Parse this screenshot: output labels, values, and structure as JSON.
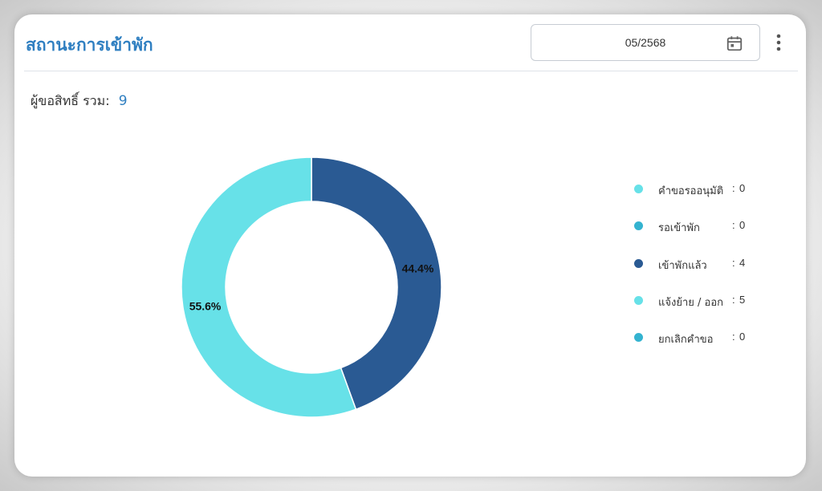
{
  "header": {
    "title": "สถานะการเข้าพัก",
    "date_value": "05/2568"
  },
  "summary": {
    "total_label": "ผู้ขอสิทธิ์ รวม:",
    "total_value": "9"
  },
  "chart_data": {
    "type": "pie",
    "donut": true,
    "categories": [
      "คำขอรออนุมัติ",
      "รอเข้าพัก",
      "เข้าพักแล้ว",
      "แจ้งย้าย / ออก",
      "ยกเลิกคำขอ"
    ],
    "values": [
      0,
      0,
      4,
      5,
      0
    ],
    "colors": [
      "#67e1e8",
      "#34b3d0",
      "#2a5a93",
      "#67e1e8",
      "#34b3d0"
    ],
    "percent_labels": [
      "",
      "",
      "44.4%",
      "55.6%",
      ""
    ],
    "legend_position": "right"
  }
}
